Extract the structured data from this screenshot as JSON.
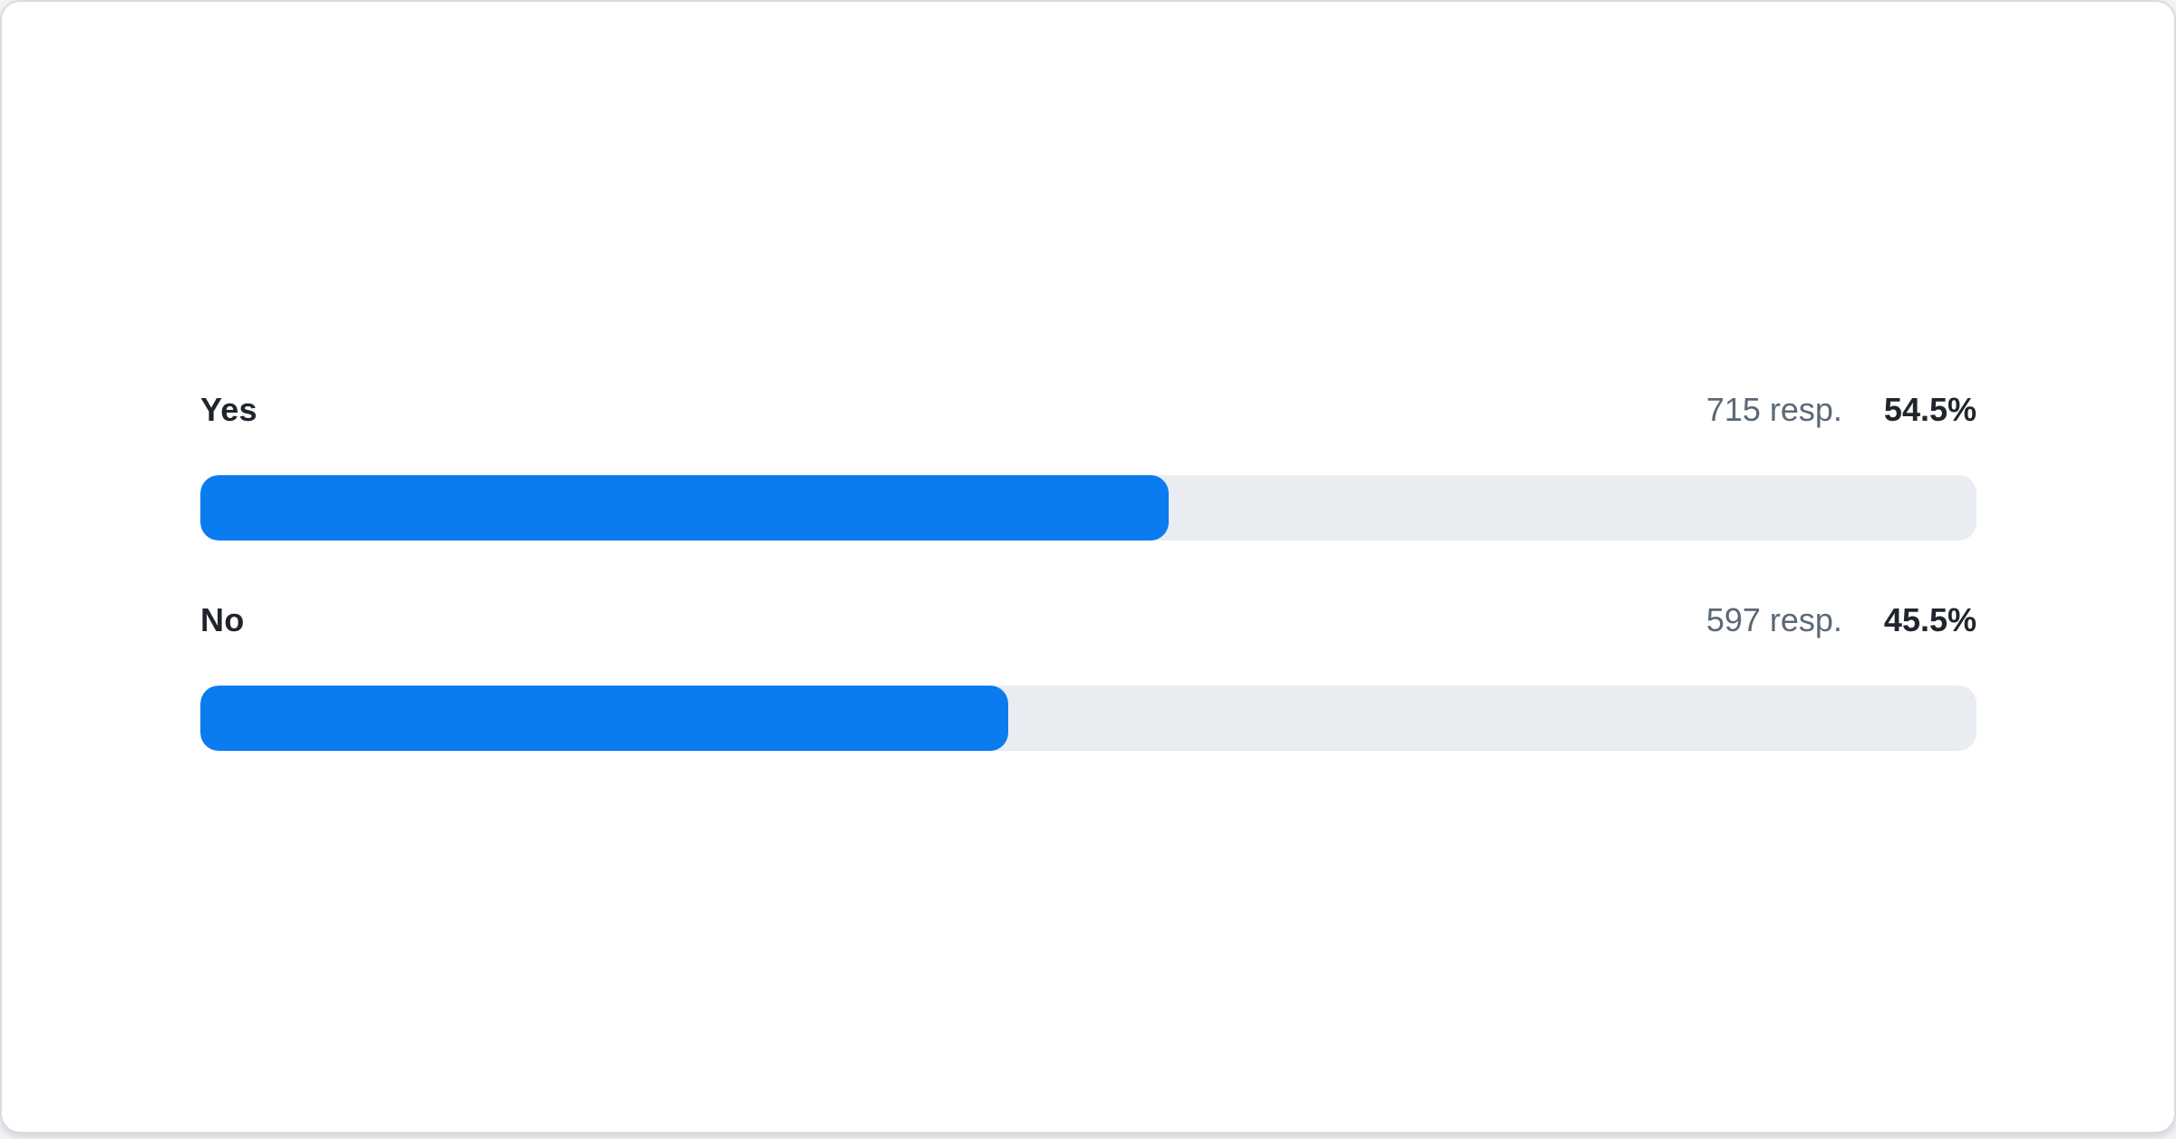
{
  "widget": {
    "kind": "poll-results"
  },
  "colors": {
    "bar_fill": "#0a7cf0",
    "bar_track": "#e9ecf1",
    "label_text": "#20252d",
    "count_text": "#5c6876",
    "card_background": "#ffffff",
    "card_border": "#d8dce0"
  },
  "rows": [
    {
      "label": "Yes",
      "responses_text": "715 resp.",
      "percent_text": "54.5%",
      "percent": 54.5
    },
    {
      "label": "No",
      "responses_text": "597 resp.",
      "percent_text": "45.5%",
      "percent": 45.5
    }
  ],
  "chart_data": {
    "type": "bar",
    "orientation": "horizontal",
    "title": "",
    "xlabel": "",
    "ylabel": "",
    "categories": [
      "Yes",
      "No"
    ],
    "series": [
      {
        "name": "percent_of_responses",
        "values": [
          54.5,
          45.5
        ]
      },
      {
        "name": "response_count",
        "values": [
          715,
          597
        ]
      }
    ],
    "value_labels": [
      "54.5%",
      "45.5%"
    ],
    "count_labels": [
      "715 resp.",
      "597 resp."
    ],
    "xlim": [
      0,
      100
    ],
    "grid": false,
    "legend": false,
    "bar_color": "#0a7cf0",
    "track_color": "#e9ecf1"
  }
}
